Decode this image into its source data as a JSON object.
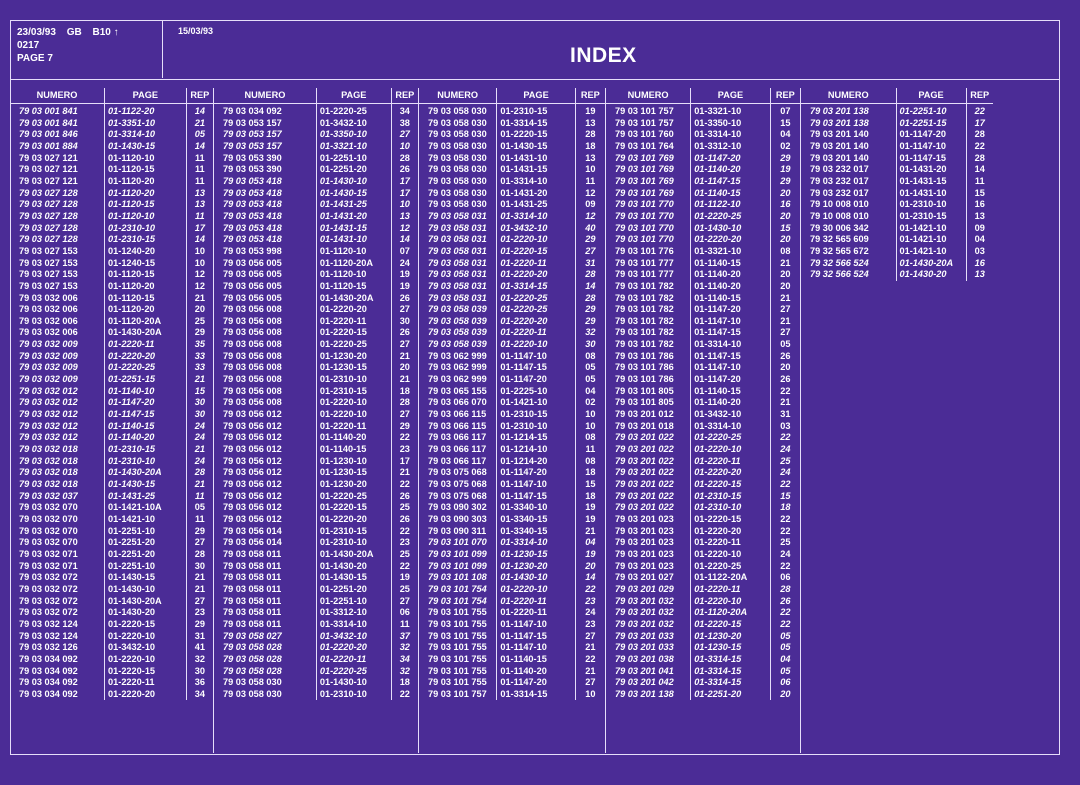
{
  "header": {
    "date1": "23/03/93",
    "code": "GB",
    "ref": "B10 ↑",
    "num": "0217",
    "page": "PAGE 7",
    "date2": "15/03/93",
    "title": "INDEX"
  },
  "column_headers": [
    "NUMERO",
    "PAGE",
    "REP"
  ],
  "columns": [
    [
      [
        "79 03 001 841",
        "01-1122-20",
        "14"
      ],
      [
        "79 03 001 841",
        "01-3351-10",
        "21"
      ],
      [
        "79 03 001 846",
        "01-3314-10",
        "05"
      ],
      [
        "79 03 001 884",
        "01-1430-15",
        "14"
      ],
      [
        "79 03 027 121",
        "01-1120-10",
        "11"
      ],
      [
        "79 03 027 121",
        "01-1120-15",
        "11"
      ],
      [
        "79 03 027 121",
        "01-1120-20",
        "11"
      ],
      [
        "79 03 027 128",
        "01-1120-20",
        "13"
      ],
      [
        "79 03 027 128",
        "01-1120-15",
        "13"
      ],
      [
        "79 03 027 128",
        "01-1120-10",
        "11"
      ],
      [
        "79 03 027 128",
        "01-2310-10",
        "17"
      ],
      [
        "79 03 027 128",
        "01-2310-15",
        "14"
      ],
      [
        "79 03 027 153",
        "01-1240-20",
        "10"
      ],
      [
        "79 03 027 153",
        "01-1240-15",
        "10"
      ],
      [
        "79 03 027 153",
        "01-1120-15",
        "12"
      ],
      [
        "79 03 027 153",
        "01-1120-20",
        "12"
      ],
      [
        "79 03 032 006",
        "01-1120-15",
        "21"
      ],
      [
        "79 03 032 006",
        "01-1120-20",
        "20"
      ],
      [
        "79 03 032 006",
        "01-1120-20A",
        "25"
      ],
      [
        "79 03 032 006",
        "01-1430-20A",
        "29"
      ],
      [
        "79 03 032 009",
        "01-2220-11",
        "35"
      ],
      [
        "79 03 032 009",
        "01-2220-20",
        "33"
      ],
      [
        "79 03 032 009",
        "01-2220-25",
        "33"
      ],
      [
        "79 03 032 009",
        "01-2251-15",
        "21"
      ],
      [
        "79 03 032 012",
        "01-1140-10",
        "15"
      ],
      [
        "79 03 032 012",
        "01-1147-20",
        "30"
      ],
      [
        "79 03 032 012",
        "01-1147-15",
        "30"
      ],
      [
        "79 03 032 012",
        "01-1140-15",
        "24"
      ],
      [
        "79 03 032 012",
        "01-1140-20",
        "24"
      ],
      [
        "79 03 032 018",
        "01-2310-15",
        "21"
      ],
      [
        "79 03 032 018",
        "01-2310-10",
        "24"
      ],
      [
        "79 03 032 018",
        "01-1430-20A",
        "28"
      ],
      [
        "79 03 032 018",
        "01-1430-15",
        "21"
      ],
      [
        "79 03 032 037",
        "01-1431-25",
        "11"
      ],
      [
        "79 03 032 070",
        "01-1421-10A",
        "05"
      ],
      [
        "79 03 032 070",
        "01-1421-10",
        "11"
      ],
      [
        "79 03 032 070",
        "01-2251-10",
        "29"
      ],
      [
        "79 03 032 070",
        "01-2251-20",
        "27"
      ],
      [
        "79 03 032 071",
        "01-2251-20",
        "28"
      ],
      [
        "79 03 032 071",
        "01-2251-10",
        "30"
      ],
      [
        "79 03 032 072",
        "01-1430-15",
        "21"
      ],
      [
        "79 03 032 072",
        "01-1430-10",
        "21"
      ],
      [
        "79 03 032 072",
        "01-1430-20A",
        "27"
      ],
      [
        "79 03 032 072",
        "01-1430-20",
        "23"
      ],
      [
        "79 03 032 124",
        "01-2220-15",
        "29"
      ],
      [
        "79 03 032 124",
        "01-2220-10",
        "31"
      ],
      [
        "79 03 032 126",
        "01-3432-10",
        "41"
      ],
      [
        "79 03 034 092",
        "01-2220-10",
        "32"
      ],
      [
        "79 03 034 092",
        "01-2220-15",
        "30"
      ],
      [
        "79 03 034 092",
        "01-2220-11",
        "36"
      ],
      [
        "79 03 034 092",
        "01-2220-20",
        "34"
      ]
    ],
    [
      [
        "79 03 034 092",
        "01-2220-25",
        "34"
      ],
      [
        "79 03 053 157",
        "01-3432-10",
        "38"
      ],
      [
        "79 03 053 157",
        "01-3350-10",
        "27"
      ],
      [
        "79 03 053 157",
        "01-3321-10",
        "10"
      ],
      [
        "79 03 053 390",
        "01-2251-10",
        "28"
      ],
      [
        "79 03 053 390",
        "01-2251-20",
        "26"
      ],
      [
        "79 03 053 418",
        "01-1430-10",
        "17"
      ],
      [
        "79 03 053 418",
        "01-1430-15",
        "17"
      ],
      [
        "79 03 053 418",
        "01-1431-25",
        "10"
      ],
      [
        "79 03 053 418",
        "01-1431-20",
        "13"
      ],
      [
        "79 03 053 418",
        "01-1431-15",
        "12"
      ],
      [
        "79 03 053 418",
        "01-1431-10",
        "14"
      ],
      [
        "79 03 053 998",
        "01-1120-10",
        "07"
      ],
      [
        "79 03 056 005",
        "01-1120-20A",
        "24"
      ],
      [
        "79 03 056 005",
        "01-1120-10",
        "19"
      ],
      [
        "79 03 056 005",
        "01-1120-15",
        "19"
      ],
      [
        "79 03 056 005",
        "01-1430-20A",
        "26"
      ],
      [
        "79 03 056 008",
        "01-2220-20",
        "27"
      ],
      [
        "79 03 056 008",
        "01-2220-11",
        "30"
      ],
      [
        "79 03 056 008",
        "01-2220-15",
        "26"
      ],
      [
        "79 03 056 008",
        "01-2220-25",
        "27"
      ],
      [
        "79 03 056 008",
        "01-1230-20",
        "21"
      ],
      [
        "79 03 056 008",
        "01-1230-15",
        "20"
      ],
      [
        "79 03 056 008",
        "01-2310-10",
        "21"
      ],
      [
        "79 03 056 008",
        "01-2310-15",
        "18"
      ],
      [
        "79 03 056 008",
        "01-2220-10",
        "28"
      ],
      [
        "79 03 056 012",
        "01-2220-10",
        "27"
      ],
      [
        "79 03 056 012",
        "01-2220-11",
        "29"
      ],
      [
        "79 03 056 012",
        "01-1140-20",
        "22"
      ],
      [
        "79 03 056 012",
        "01-1140-15",
        "23"
      ],
      [
        "79 03 056 012",
        "01-1230-10",
        "17"
      ],
      [
        "79 03 056 012",
        "01-1230-15",
        "21"
      ],
      [
        "79 03 056 012",
        "01-1230-20",
        "22"
      ],
      [
        "79 03 056 012",
        "01-2220-25",
        "26"
      ],
      [
        "79 03 056 012",
        "01-2220-15",
        "25"
      ],
      [
        "79 03 056 012",
        "01-2220-20",
        "26"
      ],
      [
        "79 03 056 014",
        "01-2310-15",
        "22"
      ],
      [
        "79 03 056 014",
        "01-2310-10",
        "23"
      ],
      [
        "79 03 058 011",
        "01-1430-20A",
        "25"
      ],
      [
        "79 03 058 011",
        "01-1430-20",
        "22"
      ],
      [
        "79 03 058 011",
        "01-1430-15",
        "19"
      ],
      [
        "79 03 058 011",
        "01-2251-20",
        "25"
      ],
      [
        "79 03 058 011",
        "01-2251-10",
        "27"
      ],
      [
        "79 03 058 011",
        "01-3312-10",
        "06"
      ],
      [
        "79 03 058 011",
        "01-3314-10",
        "11"
      ],
      [
        "79 03 058 027",
        "01-3432-10",
        "37"
      ],
      [
        "79 03 058 028",
        "01-2220-20",
        "32"
      ],
      [
        "79 03 058 028",
        "01-2220-11",
        "34"
      ],
      [
        "79 03 058 028",
        "01-2220-25",
        "32"
      ],
      [
        "79 03 058 030",
        "01-1430-10",
        "18"
      ],
      [
        "79 03 058 030",
        "01-2310-10",
        "22"
      ]
    ],
    [
      [
        "79 03 058 030",
        "01-2310-15",
        "19"
      ],
      [
        "79 03 058 030",
        "01-3314-15",
        "13"
      ],
      [
        "79 03 058 030",
        "01-2220-15",
        "28"
      ],
      [
        "79 03 058 030",
        "01-1430-15",
        "18"
      ],
      [
        "79 03 058 030",
        "01-1431-10",
        "13"
      ],
      [
        "79 03 058 030",
        "01-1431-15",
        "10"
      ],
      [
        "79 03 058 030",
        "01-3314-10",
        "11"
      ],
      [
        "79 03 058 030",
        "01-1431-20",
        "12"
      ],
      [
        "79 03 058 030",
        "01-1431-25",
        "09"
      ],
      [
        "79 03 058 031",
        "01-3314-10",
        "12"
      ],
      [
        "79 03 058 031",
        "01-3432-10",
        "40"
      ],
      [
        "79 03 058 031",
        "01-2220-10",
        "29"
      ],
      [
        "79 03 058 031",
        "01-2220-15",
        "27"
      ],
      [
        "79 03 058 031",
        "01-2220-11",
        "31"
      ],
      [
        "79 03 058 031",
        "01-2220-20",
        "28"
      ],
      [
        "79 03 058 031",
        "01-3314-15",
        "14"
      ],
      [
        "79 03 058 031",
        "01-2220-25",
        "28"
      ],
      [
        "79 03 058 039",
        "01-2220-25",
        "29"
      ],
      [
        "79 03 058 039",
        "01-2220-20",
        "29"
      ],
      [
        "79 03 058 039",
        "01-2220-11",
        "32"
      ],
      [
        "79 03 058 039",
        "01-2220-10",
        "30"
      ],
      [
        "79 03 062 999",
        "01-1147-10",
        "08"
      ],
      [
        "79 03 062 999",
        "01-1147-15",
        "05"
      ],
      [
        "79 03 062 999",
        "01-1147-20",
        "05"
      ],
      [
        "79 03 065 155",
        "01-2225-10",
        "04"
      ],
      [
        "79 03 066 070",
        "01-1421-10",
        "02"
      ],
      [
        "79 03 066 115",
        "01-2310-15",
        "10"
      ],
      [
        "79 03 066 115",
        "01-2310-10",
        "10"
      ],
      [
        "79 03 066 117",
        "01-1214-15",
        "08"
      ],
      [
        "79 03 066 117",
        "01-1214-10",
        "11"
      ],
      [
        "79 03 066 117",
        "01-1214-20",
        "08"
      ],
      [
        "79 03 075 068",
        "01-1147-20",
        "18"
      ],
      [
        "79 03 075 068",
        "01-1147-10",
        "15"
      ],
      [
        "79 03 075 068",
        "01-1147-15",
        "18"
      ],
      [
        "79 03 090 302",
        "01-3340-10",
        "19"
      ],
      [
        "79 03 090 303",
        "01-3340-15",
        "19"
      ],
      [
        "79 03 090 311",
        "01-3340-15",
        "21"
      ],
      [
        "79 03 101 070",
        "01-3314-10",
        "04"
      ],
      [
        "79 03 101 099",
        "01-1230-15",
        "19"
      ],
      [
        "79 03 101 099",
        "01-1230-20",
        "20"
      ],
      [
        "79 03 101 108",
        "01-1430-10",
        "14"
      ],
      [
        "79 03 101 754",
        "01-2220-10",
        "22"
      ],
      [
        "79 03 101 754",
        "01-2220-11",
        "23"
      ],
      [
        "79 03 101 755",
        "01-2220-11",
        "24"
      ],
      [
        "79 03 101 755",
        "01-1147-10",
        "23"
      ],
      [
        "79 03 101 755",
        "01-1147-15",
        "27"
      ],
      [
        "79 03 101 755",
        "01-1147-10",
        "21"
      ],
      [
        "79 03 101 755",
        "01-1140-15",
        "22"
      ],
      [
        "79 03 101 755",
        "01-1140-20",
        "21"
      ],
      [
        "79 03 101 755",
        "01-1147-20",
        "27"
      ],
      [
        "79 03 101 757",
        "01-3314-15",
        "10"
      ]
    ],
    [
      [
        "79 03 101 757",
        "01-3321-10",
        "07"
      ],
      [
        "79 03 101 757",
        "01-3350-10",
        "15"
      ],
      [
        "79 03 101 760",
        "01-3314-10",
        "04"
      ],
      [
        "79 03 101 764",
        "01-3312-10",
        "02"
      ],
      [
        "79 03 101 769",
        "01-1147-20",
        "29"
      ],
      [
        "79 03 101 769",
        "01-1140-20",
        "19"
      ],
      [
        "79 03 101 769",
        "01-1147-15",
        "29"
      ],
      [
        "79 03 101 769",
        "01-1140-15",
        "20"
      ],
      [
        "79 03 101 770",
        "01-1122-10",
        "16"
      ],
      [
        "79 03 101 770",
        "01-2220-25",
        "20"
      ],
      [
        "79 03 101 770",
        "01-1430-10",
        "15"
      ],
      [
        "79 03 101 770",
        "01-2220-20",
        "20"
      ],
      [
        "79 03 101 776",
        "01-3321-10",
        "08"
      ],
      [
        "79 03 101 777",
        "01-1140-15",
        "21"
      ],
      [
        "79 03 101 777",
        "01-1140-20",
        "20"
      ],
      [
        "79 03 101 782",
        "01-1140-20",
        "20"
      ],
      [
        "79 03 101 782",
        "01-1140-15",
        "21"
      ],
      [
        "79 03 101 782",
        "01-1147-20",
        "27"
      ],
      [
        "79 03 101 782",
        "01-1147-10",
        "21"
      ],
      [
        "79 03 101 782",
        "01-1147-15",
        "27"
      ],
      [
        "79 03 101 782",
        "01-3314-10",
        "05"
      ],
      [
        "79 03 101 786",
        "01-1147-15",
        "26"
      ],
      [
        "79 03 101 786",
        "01-1147-10",
        "20"
      ],
      [
        "79 03 101 786",
        "01-1147-20",
        "26"
      ],
      [
        "79 03 101 805",
        "01-1140-15",
        "22"
      ],
      [
        "79 03 101 805",
        "01-1140-20",
        "21"
      ],
      [
        "79 03 201 012",
        "01-3432-10",
        "31"
      ],
      [
        "79 03 201 018",
        "01-3314-10",
        "03"
      ],
      [
        "79 03 201 022",
        "01-2220-25",
        "22"
      ],
      [
        "79 03 201 022",
        "01-2220-10",
        "24"
      ],
      [
        "79 03 201 022",
        "01-2220-11",
        "25"
      ],
      [
        "79 03 201 022",
        "01-2220-20",
        "24"
      ],
      [
        "79 03 201 022",
        "01-2220-15",
        "22"
      ],
      [
        "79 03 201 022",
        "01-2310-15",
        "15"
      ],
      [
        "79 03 201 022",
        "01-2310-10",
        "18"
      ],
      [
        "79 03 201 023",
        "01-2220-15",
        "22"
      ],
      [
        "79 03 201 023",
        "01-2220-20",
        "22"
      ],
      [
        "79 03 201 023",
        "01-2220-11",
        "25"
      ],
      [
        "79 03 201 023",
        "01-2220-10",
        "24"
      ],
      [
        "79 03 201 023",
        "01-2220-25",
        "22"
      ],
      [
        "79 03 201 027",
        "01-1122-20A",
        "06"
      ],
      [
        "79 03 201 029",
        "01-2220-11",
        "28"
      ],
      [
        "79 03 201 032",
        "01-2220-10",
        "26"
      ],
      [
        "79 03 201 032",
        "01-1120-20A",
        "22"
      ],
      [
        "79 03 201 032",
        "01-2220-15",
        "22"
      ],
      [
        "79 03 201 033",
        "01-1230-20",
        "05"
      ],
      [
        "79 03 201 033",
        "01-1230-15",
        "05"
      ],
      [
        "79 03 201 038",
        "01-3314-15",
        "04"
      ],
      [
        "79 03 201 041",
        "01-3314-15",
        "05"
      ],
      [
        "79 03 201 042",
        "01-3314-15",
        "06"
      ],
      [
        "79 03 201 138",
        "01-2251-20",
        "20"
      ]
    ],
    [
      [
        "79 03 201 138",
        "01-2251-10",
        "22"
      ],
      [
        "79 03 201 138",
        "01-2251-15",
        "17"
      ],
      [
        "79 03 201 140",
        "01-1147-20",
        "28"
      ],
      [
        "79 03 201 140",
        "01-1147-10",
        "22"
      ],
      [
        "79 03 201 140",
        "01-1147-15",
        "28"
      ],
      [
        "79 03 232 017",
        "01-1431-20",
        "14"
      ],
      [
        "79 03 232 017",
        "01-1431-15",
        "11"
      ],
      [
        "79 03 232 017",
        "01-1431-10",
        "15"
      ],
      [
        "79 10 008 010",
        "01-2310-10",
        "16"
      ],
      [
        "79 10 008 010",
        "01-2310-15",
        "13"
      ],
      [
        "79 30 006 342",
        "01-1421-10",
        "09"
      ],
      [
        "79 32 565 609",
        "01-1421-10",
        "04"
      ],
      [
        "79 32 565 672",
        "01-1421-10",
        "03"
      ],
      [
        "79 32 566 524",
        "01-1430-20A",
        "16"
      ],
      [
        "79 32 566 524",
        "01-1430-20",
        "13"
      ]
    ]
  ],
  "italic_rows": [
    [
      0,
      1,
      2,
      3,
      7,
      8,
      9,
      10,
      11,
      20,
      21,
      22,
      23,
      24,
      25,
      26,
      27,
      28,
      29,
      30,
      31,
      32,
      33
    ],
    [
      2,
      3,
      6,
      7,
      8,
      9,
      10,
      11,
      45,
      46,
      47,
      48
    ],
    [
      9,
      10,
      11,
      12,
      13,
      14,
      15,
      16,
      17,
      18,
      19,
      20,
      37,
      38,
      39,
      40,
      41,
      42
    ],
    [
      4,
      5,
      6,
      7,
      8,
      9,
      10,
      11,
      28,
      29,
      30,
      31,
      32,
      33,
      34,
      41,
      42,
      43,
      44,
      45,
      46,
      47,
      48,
      49,
      50
    ],
    [
      0,
      1,
      13,
      14
    ]
  ]
}
